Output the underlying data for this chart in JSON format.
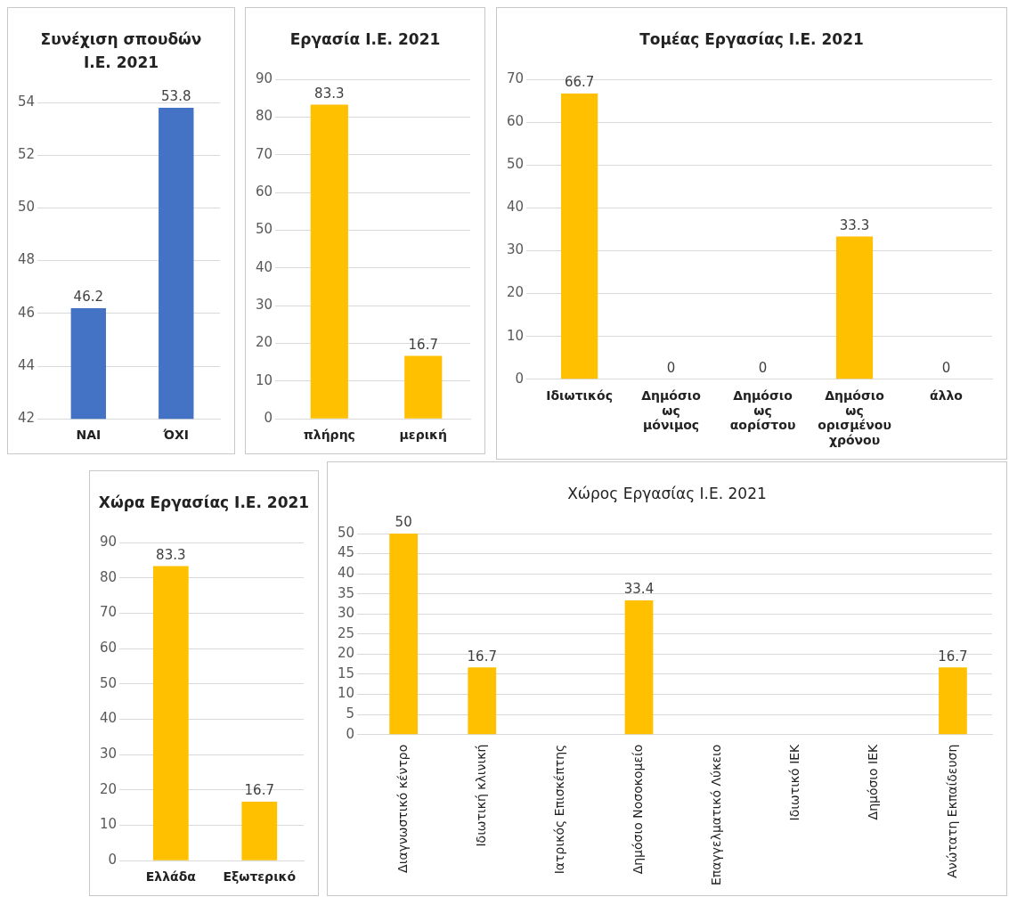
{
  "chart_data": [
    {
      "type": "bar",
      "title": "Συνέχιση σπουδών Ι.Ε. 2021",
      "categories": [
        "ΝΑΙ",
        "ΌΧΙ"
      ],
      "values": [
        46.2,
        53.8
      ],
      "color": "#4472c4",
      "ylim": [
        42,
        54
      ],
      "yticks": [
        42,
        44,
        46,
        48,
        50,
        52,
        54
      ],
      "grid": "y",
      "data_labels": true
    },
    {
      "type": "bar",
      "title": "Εργασία Ι.Ε. 2021",
      "categories": [
        "πλήρης",
        "μερική"
      ],
      "values": [
        83.3,
        16.7
      ],
      "color": "#ffc000",
      "ylim": [
        0,
        90
      ],
      "yticks": [
        0,
        10,
        20,
        30,
        40,
        50,
        60,
        70,
        80,
        90
      ],
      "grid": "y",
      "data_labels": true
    },
    {
      "type": "bar",
      "title": "Τομέας Εργασίας Ι.Ε. 2021",
      "categories": [
        "Ιδιωτικός",
        "Δημόσιο ως μόνιμος",
        "Δημόσιο ως αορίστου",
        "Δημόσιο ως ορισμένου χρόνου",
        "άλλο"
      ],
      "values": [
        66.7,
        0,
        0,
        33.3,
        0
      ],
      "color": "#ffc000",
      "ylim": [
        0,
        70
      ],
      "yticks": [
        0,
        10,
        20,
        30,
        40,
        50,
        60,
        70
      ],
      "grid": "y",
      "data_labels": true
    },
    {
      "type": "bar",
      "title": "Χώρα Εργασίας Ι.Ε. 2021",
      "categories": [
        "Ελλάδα",
        "Εξωτερικό"
      ],
      "values": [
        83.3,
        16.7
      ],
      "color": "#ffc000",
      "ylim": [
        0,
        90
      ],
      "yticks": [
        0,
        10,
        20,
        30,
        40,
        50,
        60,
        70,
        80,
        90
      ],
      "grid": "y",
      "data_labels": true
    },
    {
      "type": "bar",
      "title": "Χώρος Εργασίας Ι.Ε. 2021",
      "categories": [
        "Διαγνωστικό κέντρο",
        "Ιδιωτική κλινική",
        "Ιατρικός Επισκέπτης",
        "Δημόσιο Νοσοκομείο",
        "Επαγγελματικό Λύκειο",
        "Ιδιωτικό ΙΕΚ",
        "Δημόσιο ΙΕΚ",
        "Ανώτατη Εκπαίδευση"
      ],
      "values": [
        50,
        16.7,
        null,
        33.4,
        null,
        null,
        null,
        16.7
      ],
      "color": "#ffc000",
      "ylim": [
        0,
        50
      ],
      "yticks": [
        0,
        5,
        10,
        15,
        20,
        25,
        30,
        35,
        40,
        45,
        50
      ],
      "grid": "y",
      "data_labels": true
    }
  ]
}
